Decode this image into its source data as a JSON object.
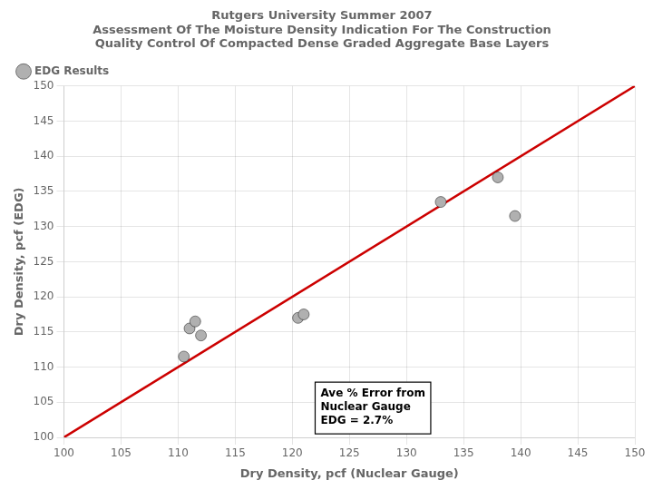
{
  "chart_data": {
    "type": "scatter",
    "title": [
      "Rutgers University Summer 2007",
      "Assessment Of The Moisture Density Indication For The Construction",
      "Quality Control Of Compacted Dense Graded Aggregate Base Layers"
    ],
    "x_label": "Dry Density, pcf (Nuclear Gauge)",
    "y_label": "Dry Density, pcf (EDG)",
    "series": [
      {
        "name": "EDG Results",
        "type": "scatter",
        "color": "#b0b0b0",
        "marker": "circle",
        "x": [
          110.5,
          111.0,
          111.5,
          112.0,
          120.5,
          121.0,
          133.0,
          138.0,
          139.5
        ],
        "values": [
          111.5,
          115.5,
          116.5,
          114.5,
          117.0,
          117.5,
          133.5,
          137.0,
          131.5
        ]
      },
      {
        "type": "line",
        "color": "#cc0000",
        "line_style": "solid",
        "x": [
          100,
          150
        ],
        "values": [
          100,
          150
        ]
      }
    ],
    "xlim": [
      100,
      150
    ],
    "ylim": [
      100,
      150
    ],
    "xticks": [
      100,
      105,
      110,
      115,
      120,
      125,
      130,
      135,
      140,
      145,
      150
    ],
    "yticks": [
      100,
      105,
      110,
      115,
      120,
      125,
      130,
      135,
      140,
      145,
      150
    ],
    "grid": true,
    "legend": "upper left",
    "annotations": [
      {
        "text": "Ave % Error from\nNuclear Gauge\nEDG = 2.7%",
        "x": 122,
        "y": 100.5
      }
    ]
  }
}
